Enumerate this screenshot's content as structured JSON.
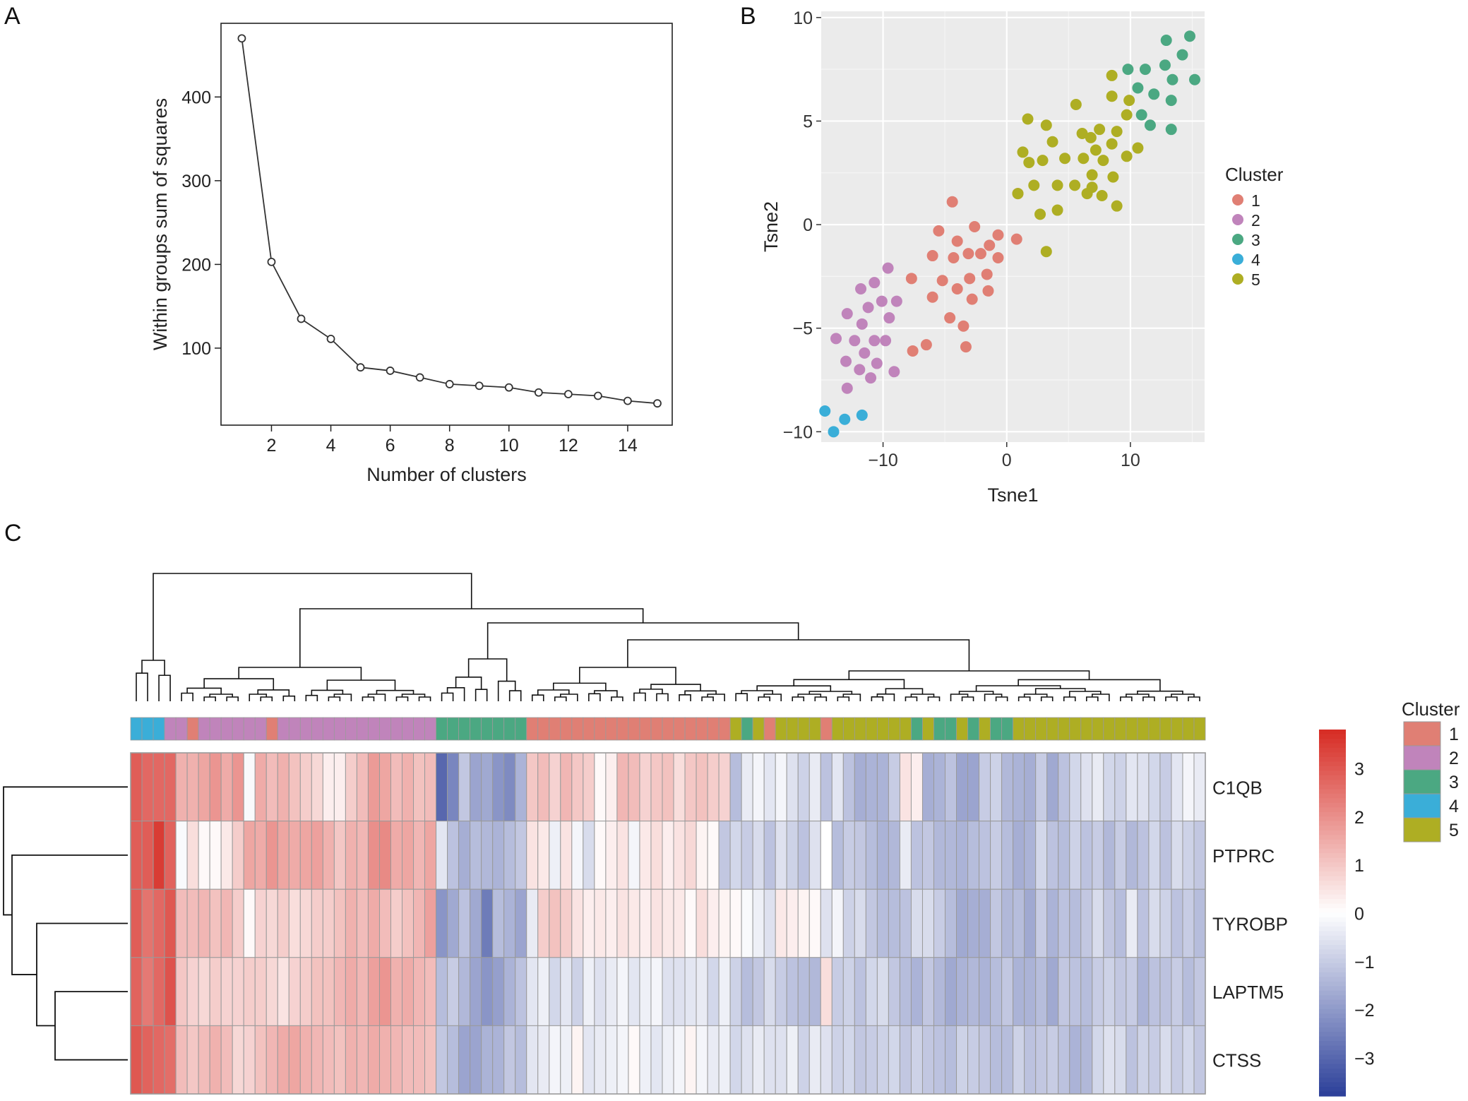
{
  "panels": {
    "a": "A",
    "b": "B",
    "c": "C"
  },
  "colors": {
    "cluster1": "#E07F74",
    "cluster2": "#C084BB",
    "cluster3": "#4BA882",
    "cluster4": "#3AAED8",
    "cluster5": "#AEAE23",
    "heat_low": "#2B3F99",
    "heat_mid": "#FFFFFF",
    "heat_high": "#D62B23",
    "ggplot_panel": "#EBEBEB",
    "cell_border": "#9A9A9A"
  },
  "chart_data": [
    {
      "type": "line",
      "xlabel": "Number of clusters",
      "ylabel": "Within groups sum of squares",
      "xlim": [
        0.3,
        15.5
      ],
      "ylim": [
        8,
        488
      ],
      "xticks": [
        2,
        4,
        6,
        8,
        10,
        12,
        14
      ],
      "yticks": [
        100,
        200,
        300,
        400
      ],
      "x": [
        1,
        2,
        3,
        4,
        5,
        6,
        7,
        8,
        9,
        10,
        11,
        12,
        13,
        14,
        15
      ],
      "y": [
        470,
        203,
        135,
        111,
        77,
        73,
        65,
        57,
        55,
        53,
        47,
        45,
        43,
        37,
        34
      ]
    },
    {
      "type": "scatter",
      "xlabel": "Tsne1",
      "ylabel": "Tsne2",
      "xlim": [
        -15,
        16
      ],
      "ylim": [
        -10.5,
        10.3
      ],
      "xticks": [
        -10,
        0,
        10
      ],
      "xtick_labels": [
        "−10",
        "0",
        "10"
      ],
      "yticks": [
        -10,
        -5,
        0,
        5,
        10
      ],
      "ytick_labels": [
        "−10",
        "−5",
        "0",
        "5",
        "10"
      ],
      "grid": true,
      "legend_title": "Cluster",
      "legend_position": "right",
      "series": [
        {
          "name": "1",
          "points": [
            [
              -4.4,
              1.1
            ],
            [
              -5.5,
              -0.3
            ],
            [
              -2.6,
              -0.1
            ],
            [
              -4,
              -0.8
            ],
            [
              -1.4,
              -1
            ],
            [
              -0.7,
              -0.5
            ],
            [
              -6.0,
              -1.5
            ],
            [
              -4.3,
              -1.6
            ],
            [
              -3.1,
              -1.4
            ],
            [
              -2.1,
              -1.4
            ],
            [
              -0.7,
              -1.6
            ],
            [
              -7.7,
              -2.6
            ],
            [
              -5.2,
              -2.7
            ],
            [
              -3.0,
              -2.6
            ],
            [
              -1.6,
              -2.4
            ],
            [
              -4.0,
              -3.1
            ],
            [
              -6.0,
              -3.5
            ],
            [
              -2.8,
              -3.6
            ],
            [
              -1.5,
              -3.2
            ],
            [
              -4.6,
              -4.5
            ],
            [
              -3.5,
              -4.9
            ],
            [
              -6.5,
              -5.8
            ],
            [
              -7.6,
              -6.1
            ],
            [
              -3.3,
              -5.9
            ],
            [
              0.8,
              -0.7
            ],
            [
              0.9,
              1.5
            ]
          ]
        },
        {
          "name": "2",
          "points": [
            [
              -9.6,
              -2.1
            ],
            [
              -10.7,
              -2.8
            ],
            [
              -11.8,
              -3.1
            ],
            [
              -10.1,
              -3.7
            ],
            [
              -8.9,
              -3.7
            ],
            [
              -12.9,
              -4.3
            ],
            [
              -11.2,
              -4.0
            ],
            [
              -9.5,
              -4.5
            ],
            [
              -11.7,
              -4.8
            ],
            [
              -13.8,
              -5.5
            ],
            [
              -12.3,
              -5.6
            ],
            [
              -10.7,
              -5.6
            ],
            [
              -9.8,
              -5.6
            ],
            [
              -11.5,
              -6.2
            ],
            [
              -13,
              -6.6
            ],
            [
              -10.5,
              -6.7
            ],
            [
              -11.9,
              -7.0
            ],
            [
              -11,
              -7.4
            ],
            [
              -9.1,
              -7.1
            ],
            [
              -12.9,
              -7.9
            ]
          ]
        },
        {
          "name": "3",
          "points": [
            [
              12.9,
              8.9
            ],
            [
              14.8,
              9.1
            ],
            [
              14.2,
              8.2
            ],
            [
              12.8,
              7.7
            ],
            [
              11.2,
              7.5
            ],
            [
              9.8,
              7.5
            ],
            [
              13.4,
              7.0
            ],
            [
              15.2,
              7.0
            ],
            [
              10.6,
              6.6
            ],
            [
              11.9,
              6.3
            ],
            [
              13.3,
              6.0
            ],
            [
              10.9,
              5.3
            ],
            [
              11.6,
              4.8
            ],
            [
              13.3,
              4.6
            ]
          ]
        },
        {
          "name": "4",
          "points": [
            [
              -14.7,
              -9.0
            ],
            [
              -13.1,
              -9.4
            ],
            [
              -11.7,
              -9.2
            ],
            [
              -14,
              -10.0
            ]
          ]
        },
        {
          "name": "5",
          "points": [
            [
              8.5,
              7.2
            ],
            [
              9.9,
              6.0
            ],
            [
              8.5,
              6.2
            ],
            [
              5.6,
              5.8
            ],
            [
              9.7,
              5.3
            ],
            [
              1.7,
              5.1
            ],
            [
              3.2,
              4.8
            ],
            [
              8.9,
              4.5
            ],
            [
              7.5,
              4.6
            ],
            [
              6.1,
              4.4
            ],
            [
              3.7,
              4.0
            ],
            [
              6.8,
              4.2
            ],
            [
              8.5,
              3.9
            ],
            [
              10.6,
              3.7
            ],
            [
              1.3,
              3.5
            ],
            [
              7.2,
              3.6
            ],
            [
              1.8,
              3.0
            ],
            [
              2.9,
              3.1
            ],
            [
              4.7,
              3.2
            ],
            [
              6.2,
              3.2
            ],
            [
              7.8,
              3.1
            ],
            [
              9.7,
              3.3
            ],
            [
              6.9,
              2.4
            ],
            [
              8.6,
              2.3
            ],
            [
              2.2,
              1.9
            ],
            [
              4.1,
              1.9
            ],
            [
              5.5,
              1.9
            ],
            [
              6.9,
              1.8
            ],
            [
              0.9,
              1.5
            ],
            [
              6.5,
              1.5
            ],
            [
              7.7,
              1.4
            ],
            [
              8.9,
              0.9
            ],
            [
              4.1,
              0.7
            ],
            [
              2.7,
              0.5
            ],
            [
              3.2,
              -1.3
            ]
          ]
        }
      ]
    },
    {
      "type": "heatmap",
      "rows": [
        "C1QB",
        "PTPRC",
        "TYROBP",
        "LAPTM5",
        "CTSS"
      ],
      "row_order_note": "",
      "legend_title": "Cluster",
      "legend_entries": [
        "1",
        "2",
        "3",
        "4",
        "5"
      ],
      "colorbar_ticks": [
        3,
        2,
        1,
        0,
        -1,
        -2,
        -3
      ],
      "colorbar_tick_labels": [
        "3",
        "2",
        "1",
        "0",
        "−1",
        "−2",
        "−3"
      ],
      "colorbar_range": [
        -3.8,
        3.8
      ],
      "column_clusters": [
        4,
        4,
        4,
        2,
        2,
        1,
        2,
        2,
        2,
        2,
        2,
        2,
        1,
        2,
        2,
        2,
        2,
        2,
        2,
        2,
        2,
        2,
        2,
        2,
        2,
        2,
        2,
        3,
        3,
        3,
        3,
        3,
        3,
        3,
        3,
        1,
        1,
        1,
        1,
        1,
        1,
        1,
        1,
        1,
        1,
        1,
        1,
        1,
        1,
        1,
        1,
        1,
        1,
        5,
        3,
        5,
        1,
        5,
        5,
        5,
        5,
        1,
        5,
        5,
        5,
        5,
        5,
        5,
        5,
        3,
        5,
        3,
        3,
        5,
        3,
        5,
        3,
        3,
        5,
        5,
        5,
        5,
        5,
        5,
        5,
        5,
        5,
        5,
        5,
        5,
        5,
        5,
        5,
        5,
        5
      ],
      "values": [
        [
          2.9,
          2.7,
          2.7,
          2.7,
          1.4,
          1.4,
          1.6,
          1.9,
          1.5,
          1.9,
          -0.1,
          1.5,
          1.2,
          1.4,
          1.1,
          0.9,
          0.7,
          0.3,
          0.3,
          0.9,
          1.2,
          1.8,
          1.6,
          1.2,
          1.4,
          1.1,
          1.2,
          -3.0,
          -2.4,
          -1.1,
          -1.8,
          -1.7,
          -2.1,
          -2.3,
          -1.5,
          1.0,
          1.2,
          0.8,
          1.3,
          1.0,
          0.9,
          0.1,
          0.3,
          1.3,
          1.2,
          0.8,
          1.0,
          1.1,
          0.6,
          1.0,
          1.1,
          0.9,
          0.8,
          -1.3,
          -0.4,
          -0.2,
          -0.5,
          -0.2,
          -0.6,
          -0.9,
          -0.4,
          -1.2,
          -0.5,
          -1.2,
          -1.6,
          -1.5,
          -1.5,
          -1.0,
          0.5,
          0.3,
          -1.6,
          -1.5,
          -1.2,
          -1.8,
          -1.8,
          -1.0,
          -0.9,
          -1.4,
          -1.5,
          -1.6,
          -1.0,
          -1.7,
          -1.2,
          -0.8,
          -0.6,
          -0.4,
          -0.8,
          -0.9,
          -0.5,
          -0.6,
          -0.8,
          -1.0,
          -0.5,
          -0.2,
          -0.4
        ],
        [
          2.9,
          2.9,
          3.5,
          2.8,
          -0.1,
          0.6,
          0.1,
          0.1,
          0.4,
          0.9,
          1.6,
          1.5,
          1.9,
          1.6,
          1.5,
          1.6,
          1.7,
          1.4,
          1.0,
          1.4,
          1.3,
          2.0,
          2.1,
          1.5,
          1.6,
          1.3,
          1.6,
          -0.5,
          -1.2,
          -1.6,
          -1.3,
          -1.4,
          -1.5,
          -1.3,
          -1.1,
          0.5,
          0.4,
          -0.3,
          0.5,
          -0.2,
          -0.7,
          0.1,
          0.3,
          0.5,
          -0.2,
          0.4,
          0.6,
          0.3,
          0.5,
          0.7,
          0.2,
          0.1,
          -1.1,
          -0.8,
          -1.0,
          -0.7,
          -1.2,
          -0.6,
          -0.9,
          -1.2,
          -0.6,
          0.0,
          -1.3,
          -1.0,
          -1.1,
          -1.3,
          -1.5,
          -1.4,
          -0.4,
          -1.2,
          -1.1,
          -1.4,
          -1.4,
          -1.5,
          -1.3,
          -1.2,
          -1.0,
          -1.3,
          -1.6,
          -1.5,
          -0.8,
          -1.2,
          -1.3,
          -0.9,
          -1.2,
          -1.0,
          -1.4,
          -1.0,
          -1.4,
          -1.2,
          -0.8,
          -1.2,
          -0.7,
          -0.9,
          -1.1
        ],
        [
          2.9,
          2.5,
          2.7,
          3.0,
          1.2,
          1.2,
          1.3,
          1.1,
          1.3,
          0.9,
          0.1,
          0.8,
          0.7,
          0.9,
          0.6,
          0.7,
          0.9,
          0.9,
          1.1,
          1.4,
          1.2,
          1.5,
          1.2,
          0.9,
          1.1,
          1.3,
          1.7,
          -2.1,
          -1.7,
          -1.2,
          -1.7,
          -2.6,
          -1.3,
          -1.5,
          -1.8,
          -0.4,
          0.9,
          1.1,
          0.9,
          0.5,
          0.3,
          0.4,
          0.3,
          0.5,
          0.4,
          0.3,
          0.5,
          0.4,
          0.4,
          0.1,
          0.6,
          0.3,
          0.2,
          0.1,
          -0.1,
          -0.3,
          -0.6,
          0.4,
          0.3,
          0.2,
          0.1,
          -0.6,
          -0.2,
          -0.9,
          -0.7,
          -1.1,
          -1.3,
          -1.3,
          -1.2,
          -0.7,
          -0.7,
          -1.0,
          -1.3,
          -1.7,
          -1.6,
          -1.6,
          -1.1,
          -1.4,
          -1.3,
          -1.7,
          -1.0,
          -1.5,
          -1.2,
          -1.3,
          -1.1,
          -0.7,
          -1.1,
          -1.3,
          -0.4,
          -1.2,
          -0.7,
          -0.9,
          -1.2,
          -1.0,
          -1.3
        ],
        [
          2.8,
          2.4,
          2.7,
          3.1,
          1.0,
          0.8,
          0.7,
          0.9,
          0.8,
          0.8,
          0.9,
          0.9,
          0.7,
          0.5,
          0.8,
          0.9,
          1.1,
          1.1,
          1.3,
          1.5,
          1.3,
          1.7,
          1.9,
          1.4,
          1.5,
          1.3,
          1.2,
          -1.3,
          -1.0,
          -1.4,
          -1.8,
          -2.1,
          -1.9,
          -1.5,
          -1.2,
          -0.5,
          -0.3,
          -0.8,
          -0.5,
          -0.9,
          -0.3,
          -0.6,
          -0.4,
          -0.2,
          -0.5,
          -0.3,
          -0.2,
          -0.6,
          -0.6,
          -0.5,
          -0.4,
          -0.8,
          -0.3,
          -0.9,
          -1.3,
          -1.1,
          -0.7,
          -1.0,
          -1.2,
          -1.3,
          -1.4,
          0.6,
          -1.0,
          -0.9,
          -1.2,
          -0.8,
          -0.7,
          -1.1,
          -1.3,
          -1.5,
          -1.1,
          -1.4,
          -1.7,
          -1.5,
          -1.4,
          -1.5,
          -1.3,
          -1.1,
          -1.5,
          -1.5,
          -1.3,
          -1.7,
          -1.1,
          -1.2,
          -1.3,
          -1.0,
          -0.9,
          -1.1,
          -1.0,
          -1.5,
          -1.2,
          -1.2,
          -1.0,
          -1.3,
          -1.1
        ],
        [
          3.0,
          2.8,
          2.7,
          2.6,
          1.2,
          1.0,
          1.2,
          1.4,
          1.2,
          0.7,
          0.8,
          1.1,
          1.3,
          1.5,
          1.6,
          1.4,
          1.3,
          1.2,
          1.1,
          1.4,
          1.3,
          1.5,
          1.4,
          1.3,
          1.2,
          1.2,
          1.1,
          -1.1,
          -1.3,
          -1.8,
          -1.8,
          -1.5,
          -1.5,
          -1.1,
          -1.3,
          -0.5,
          -0.4,
          -0.2,
          -0.3,
          0.2,
          -0.5,
          -0.4,
          -0.3,
          -0.2,
          0.1,
          -0.3,
          -0.5,
          -0.3,
          -0.2,
          0.2,
          -0.2,
          -0.4,
          -0.3,
          -0.8,
          -0.6,
          -0.4,
          -0.6,
          -0.6,
          -0.3,
          -0.9,
          -0.4,
          -0.6,
          -0.9,
          -0.8,
          -1.1,
          -1.0,
          -0.9,
          -0.8,
          -1.1,
          -0.9,
          -1.1,
          -1.2,
          -1.3,
          -0.9,
          -1.0,
          -1.1,
          -1.3,
          -1.3,
          -0.9,
          -1.2,
          -1.1,
          -1.0,
          -1.2,
          -1.5,
          -1.4,
          -0.8,
          -0.6,
          -0.7,
          -1.2,
          -0.9,
          -1.0,
          -0.7,
          -1.0,
          -0.8,
          -1.1
        ]
      ]
    }
  ]
}
